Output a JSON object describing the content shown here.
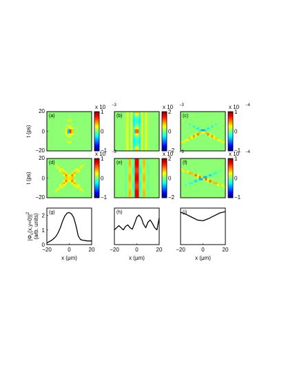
{
  "colors": {
    "background_green": "#8cff73",
    "frame": "#000000",
    "jet": [
      "#00008f",
      "#0000ff",
      "#00ffff",
      "#80ff80",
      "#ffff00",
      "#ff0000",
      "#800000"
    ]
  },
  "chart_data": [
    {
      "panel": "(a)",
      "type": "heatmap",
      "x_ticks": [],
      "y_ticks": [
        "20",
        "0",
        "−20"
      ],
      "xlim": [
        -20,
        20
      ],
      "ylim": [
        -20,
        20
      ],
      "ylabel": "t (ps)",
      "colorbar": {
        "ticks": [
          "1",
          "0",
          "−1"
        ],
        "multiplier_base": "x 10",
        "multiplier_exp": "−3",
        "range": [
          -1,
          1
        ]
      }
    },
    {
      "panel": "(b)",
      "type": "heatmap",
      "x_ticks": [],
      "y_ticks": [],
      "xlim": [
        -20,
        20
      ],
      "ylim": [
        -20,
        20
      ],
      "colorbar": {
        "ticks": [
          "2",
          "0",
          "−2"
        ],
        "multiplier_base": "x 10",
        "multiplier_exp": "−3",
        "range": [
          -2,
          2
        ]
      }
    },
    {
      "panel": "(c)",
      "type": "heatmap",
      "x_ticks": [],
      "y_ticks": [],
      "xlim": [
        -20,
        20
      ],
      "ylim": [
        -20,
        20
      ],
      "colorbar": {
        "ticks": [
          "1",
          "0",
          "−1"
        ],
        "multiplier_base": "x 10",
        "multiplier_exp": "−4",
        "range": [
          -1,
          1
        ]
      }
    },
    {
      "panel": "(d)",
      "type": "heatmap",
      "x_ticks": [],
      "y_ticks": [
        "20",
        "0",
        "−20"
      ],
      "xlim": [
        -20,
        20
      ],
      "ylim": [
        -20,
        20
      ],
      "ylabel": "t (ps)",
      "colorbar": {
        "ticks": [
          "1",
          "0",
          "−1"
        ],
        "multiplier_base": "x 10",
        "multiplier_exp": "−3",
        "range": [
          -1,
          1
        ]
      }
    },
    {
      "panel": "(e)",
      "type": "heatmap",
      "x_ticks": [],
      "y_ticks": [],
      "xlim": [
        -20,
        20
      ],
      "ylim": [
        -20,
        20
      ],
      "colorbar": {
        "ticks": [
          "2",
          "0",
          "−2"
        ],
        "multiplier_base": "x 10",
        "multiplier_exp": "−3",
        "range": [
          -2,
          2
        ]
      }
    },
    {
      "panel": "(f)",
      "type": "heatmap",
      "x_ticks": [],
      "y_ticks": [],
      "xlim": [
        -20,
        20
      ],
      "ylim": [
        -20,
        20
      ],
      "colorbar": {
        "ticks": [
          "1",
          "0",
          "−1"
        ],
        "multiplier_base": "x 10",
        "multiplier_exp": "−4",
        "range": [
          -1,
          1
        ]
      }
    },
    {
      "panel": "(g)",
      "type": "line",
      "xlim": [
        -20,
        20
      ],
      "ylim": [
        0,
        2.5
      ],
      "x_ticks": [
        "−20",
        "0",
        "20"
      ],
      "y_ticks": [
        "0",
        "1",
        "2"
      ],
      "xlabel": "x (μm)",
      "ylabel_main": "|Φ",
      "ylabel_sub": "c",
      "ylabel_rest": "(x,y=0)|",
      "ylabel_sup": "2",
      "ylabel2": "(arb. units)",
      "x": [
        -20,
        -18,
        -16,
        -14,
        -12,
        -10,
        -8,
        -6,
        -4,
        -2,
        0,
        2,
        4,
        6,
        8,
        10,
        12,
        14,
        16,
        18,
        20
      ],
      "y": [
        0.1,
        0.2,
        0.28,
        0.4,
        0.55,
        0.8,
        1.15,
        1.6,
        1.95,
        2.15,
        2.2,
        2.1,
        1.85,
        1.3,
        0.6,
        0.35,
        0.3,
        0.28,
        0.25,
        0.25,
        0.25
      ]
    },
    {
      "panel": "(h)",
      "type": "line",
      "xlim": [
        -20,
        20
      ],
      "ylim": [
        0,
        2.6
      ],
      "x_ticks": [
        "−20",
        "0",
        "20"
      ],
      "y_ticks": [],
      "xlabel": "x (μm)",
      "x": [
        -20,
        -18,
        -16,
        -14,
        -12,
        -10,
        -8,
        -6,
        -4,
        -2,
        0,
        2,
        4,
        6,
        8,
        10,
        12,
        14,
        16,
        18,
        20
      ],
      "y": [
        1.05,
        1.2,
        1.35,
        1.2,
        1.05,
        1.3,
        1.4,
        1.2,
        1.1,
        1.5,
        1.95,
        2.1,
        1.9,
        1.45,
        1.2,
        1.6,
        1.75,
        1.5,
        1.2,
        1.05,
        1.9
      ]
    },
    {
      "panel": "(i)",
      "type": "line",
      "xlim": [
        -20,
        20
      ],
      "ylim": [
        0,
        2.6
      ],
      "x_ticks": [
        "−20",
        "0",
        "20"
      ],
      "y_ticks": [],
      "xlabel": "x (μm)",
      "x": [
        -20,
        -15,
        -10,
        -5,
        0,
        5,
        10,
        15,
        20
      ],
      "y": [
        2.3,
        2.15,
        1.95,
        1.75,
        1.7,
        1.85,
        2.05,
        2.25,
        2.35
      ]
    }
  ]
}
